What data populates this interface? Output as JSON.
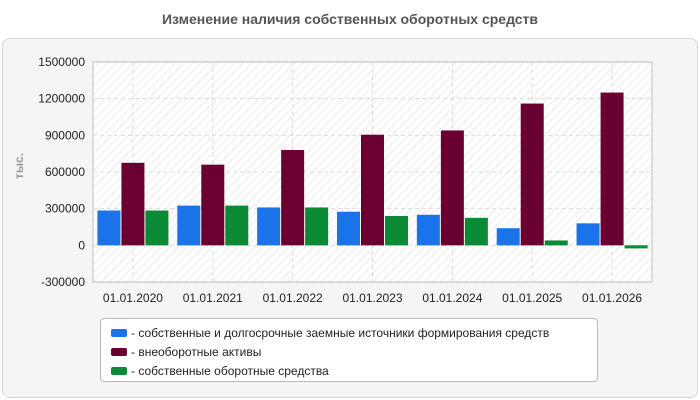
{
  "chart_data": {
    "type": "bar",
    "title": "Изменение наличия собственных оборотных средств",
    "ylabel": "тыс.",
    "xlabel": "",
    "ylim": [
      -300000,
      1500000
    ],
    "yticks": [
      1500000,
      1200000,
      900000,
      600000,
      300000,
      0,
      -300000
    ],
    "categories": [
      "01.01.2020",
      "01.01.2021",
      "01.01.2022",
      "01.01.2023",
      "01.01.2024",
      "01.01.2025",
      "01.01.2026"
    ],
    "series": [
      {
        "name": "собственные и долгосрочные заемные источники формирования средств",
        "color": "#1a73e8",
        "values": [
          285000,
          325000,
          310000,
          275000,
          250000,
          140000,
          180000
        ]
      },
      {
        "name": "внеоборотные активы",
        "color": "#6a0032",
        "values": [
          675000,
          660000,
          780000,
          905000,
          940000,
          1160000,
          1250000
        ]
      },
      {
        "name": "собственные оборотные средства",
        "color": "#0a8a35",
        "values": [
          285000,
          325000,
          310000,
          240000,
          225000,
          40000,
          -25000
        ]
      }
    ],
    "grid": true,
    "legend_position": "bottom"
  }
}
